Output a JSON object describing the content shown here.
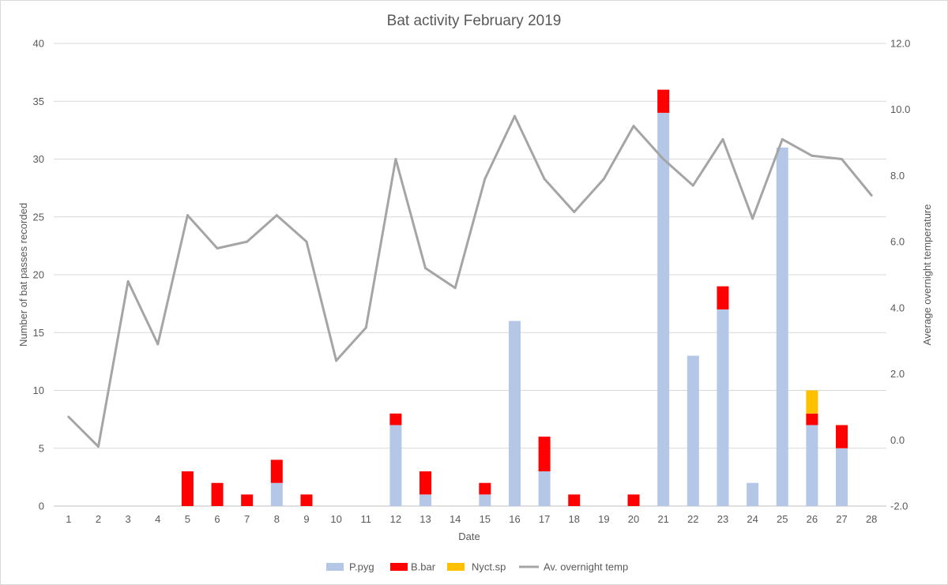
{
  "chart_data": {
    "type": "bar",
    "title": "Bat activity February 2019",
    "xlabel": "Date",
    "ylabel": "Number of bat passes recorded",
    "y2label": "Average overnight temperature",
    "categories": [
      "1",
      "2",
      "3",
      "4",
      "5",
      "6",
      "7",
      "8",
      "9",
      "10",
      "11",
      "12",
      "13",
      "14",
      "15",
      "16",
      "17",
      "18",
      "19",
      "20",
      "21",
      "22",
      "23",
      "24",
      "25",
      "26",
      "27",
      "28"
    ],
    "ylim": [
      0,
      40
    ],
    "yticks": [
      "0",
      "5",
      "10",
      "15",
      "20",
      "25",
      "30",
      "35",
      "40"
    ],
    "y2lim": [
      -2,
      12
    ],
    "y2ticks": [
      "-2.0",
      "0.0",
      "2.0",
      "4.0",
      "6.0",
      "8.0",
      "10.0",
      "12.0"
    ],
    "grid": true,
    "legend_position": "bottom",
    "series": [
      {
        "name": "P.pyg",
        "kind": "bar",
        "color": "#b4c7e7",
        "values": [
          0,
          0,
          0,
          0,
          0,
          0,
          0,
          2,
          0,
          0,
          0,
          7,
          1,
          0,
          1,
          16,
          3,
          0,
          0,
          0,
          34,
          13,
          17,
          2,
          31,
          7,
          5,
          0
        ]
      },
      {
        "name": "B.bar",
        "kind": "bar",
        "color": "#ff0000",
        "values": [
          0,
          0,
          0,
          0,
          3,
          2,
          1,
          2,
          1,
          0,
          0,
          1,
          2,
          0,
          1,
          0,
          3,
          1,
          0,
          1,
          2,
          0,
          2,
          0,
          0,
          1,
          2,
          0
        ]
      },
      {
        "name": "Nyct.sp",
        "kind": "bar",
        "color": "#ffc000",
        "values": [
          0,
          0,
          0,
          0,
          0,
          0,
          0,
          0,
          0,
          0,
          0,
          0,
          0,
          0,
          0,
          0,
          0,
          0,
          0,
          0,
          0,
          0,
          0,
          0,
          0,
          2,
          0,
          0
        ]
      },
      {
        "name": "Av. overnight temp",
        "kind": "line",
        "axis": "right",
        "color": "#a5a5a5",
        "values": [
          0.7,
          -0.2,
          4.8,
          2.9,
          6.8,
          5.8,
          6.0,
          6.8,
          6.0,
          2.4,
          3.4,
          8.5,
          5.2,
          4.6,
          7.9,
          9.8,
          7.9,
          6.9,
          7.9,
          9.5,
          8.5,
          7.7,
          9.1,
          6.7,
          9.1,
          8.6,
          8.5,
          7.4
        ]
      }
    ]
  }
}
